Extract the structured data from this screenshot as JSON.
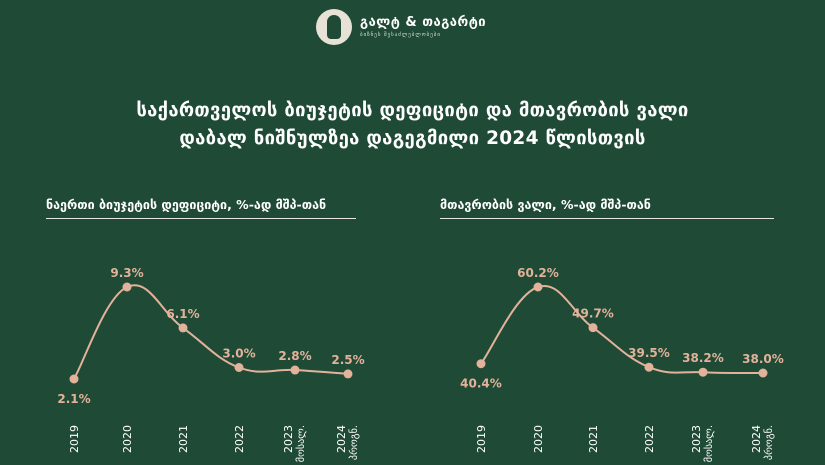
{
  "header": {
    "logo_name": "გალტ & თაგარტი",
    "logo_tagline": "ბიზნეს შესაძლებლობები"
  },
  "title_line1": "საქართველოს ბიუჯეტის დეფიციტი და მთავრობის ვალი",
  "title_line2": "დაბალ ნიშნულზეა დაგეგმილი 2024 წლისთვის",
  "colors": {
    "background": "#1f4a35",
    "line": "#e2b29b",
    "text": "#ffffff"
  },
  "chart_data": [
    {
      "type": "line",
      "title": "ნაერთი ბიუჯეტის დეფიციტი, %-ად მშპ-თან",
      "categories": [
        "2019",
        "2020",
        "2021",
        "2022",
        "2023 მოსალ.",
        "2024 პროგნ."
      ],
      "values": [
        2.1,
        9.3,
        6.1,
        3.0,
        2.8,
        2.5
      ],
      "labels": [
        "2.1%",
        "9.3%",
        "6.1%",
        "3.0%",
        "2.8%",
        "2.5%"
      ],
      "label_positions": [
        "below",
        "above",
        "above",
        "above",
        "above",
        "above"
      ],
      "ylim": [
        0,
        10
      ],
      "grid": false
    },
    {
      "type": "line",
      "title": "მთავრობის ვალი, %-ად მშპ-თან",
      "categories": [
        "2019",
        "2020",
        "2021",
        "2022",
        "2023 მოსალ.",
        "2024 პროგნ."
      ],
      "values": [
        40.4,
        60.2,
        49.7,
        39.5,
        38.2,
        38.0
      ],
      "labels": [
        "40.4%",
        "60.2%",
        "49.7%",
        "39.5%",
        "38.2%",
        "38.0%"
      ],
      "label_positions": [
        "below",
        "above",
        "above",
        "above",
        "above",
        "above"
      ],
      "ylim": [
        37.2,
        63
      ],
      "grid": false
    }
  ]
}
